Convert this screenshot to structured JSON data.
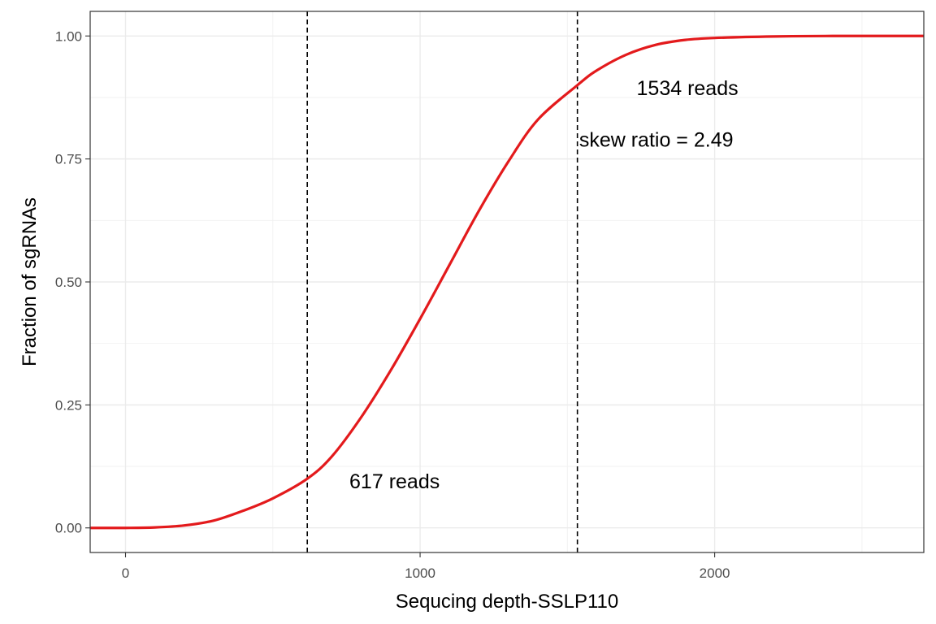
{
  "chart_data": {
    "type": "line",
    "xlabel": "Sequcing depth-SSLP110",
    "ylabel": "Fraction of sgRNAs",
    "xlim": [
      -120,
      2710
    ],
    "ylim": [
      -0.05,
      1.05
    ],
    "x_ticks": [
      0,
      1000,
      2000
    ],
    "x_tick_labels": [
      "0",
      "1000",
      "2000"
    ],
    "y_ticks": [
      0,
      0.25,
      0.5,
      0.75,
      1
    ],
    "y_tick_labels": [
      "0.00",
      "0.25",
      "0.50",
      "0.75",
      "1.00"
    ],
    "grid": true,
    "series": [
      {
        "color": "#e31a1c",
        "x": [
          -120,
          0,
          100,
          200,
          300,
          400,
          500,
          617,
          700,
          800,
          900,
          1000,
          1100,
          1200,
          1300,
          1400,
          1534,
          1600,
          1700,
          1800,
          1900,
          2000,
          2200,
          2400,
          2710
        ],
        "y": [
          0,
          0,
          0.001,
          0.005,
          0.015,
          0.035,
          0.06,
          0.1,
          0.145,
          0.225,
          0.32,
          0.425,
          0.535,
          0.645,
          0.745,
          0.83,
          0.9,
          0.93,
          0.962,
          0.982,
          0.992,
          0.996,
          0.999,
          1,
          1
        ]
      }
    ],
    "vlines": [
      617,
      1534
    ],
    "annotations": [
      {
        "text": "617 reads",
        "x": 760,
        "y": 0.095
      },
      {
        "text": "1534 reads",
        "x": 1735,
        "y": 0.895
      },
      {
        "text": "skew ratio = 2.49",
        "x": 1540,
        "y": 0.79
      }
    ]
  }
}
